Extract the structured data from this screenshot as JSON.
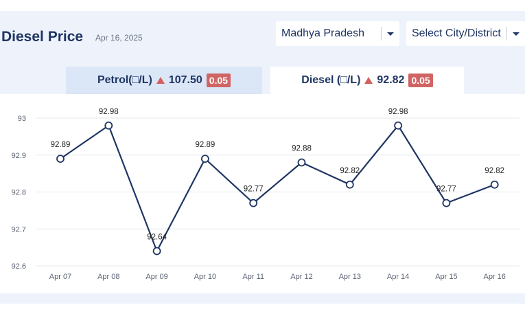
{
  "header": {
    "title": "Diesel Price",
    "date": "Apr 16, 2025"
  },
  "filters": {
    "state": "Madhya Pradesh",
    "city": "Select City/District",
    "caret_icon": "chevron-down-icon"
  },
  "tabs": {
    "petrol": {
      "label": "Petrol(□/L)",
      "price": "107.50",
      "change": "0.05",
      "direction": "up",
      "active": false
    },
    "diesel": {
      "label": "Diesel (□/L)",
      "price": "92.82",
      "change": "0.05",
      "direction": "up",
      "active": true
    }
  },
  "colors": {
    "line": "#1f3563",
    "up_arrow": "#d35f5f",
    "change_badge": "#d06464",
    "grid": "#e3e7ee"
  },
  "chart_data": {
    "type": "line",
    "title": "",
    "xlabel": "",
    "ylabel": "",
    "categories": [
      "Apr 07",
      "Apr 08",
      "Apr 09",
      "Apr 10",
      "Apr 11",
      "Apr 12",
      "Apr 13",
      "Apr 14",
      "Apr 15",
      "Apr 16"
    ],
    "values": [
      92.89,
      92.98,
      92.64,
      92.89,
      92.77,
      92.88,
      92.82,
      92.98,
      92.77,
      92.82
    ],
    "data_labels": [
      "92.89",
      "92.98",
      "92.64",
      "92.89",
      "92.77",
      "92.88",
      "92.82",
      "92.98",
      "92.77",
      "92.82"
    ],
    "yticks": [
      "92.6",
      "92.7",
      "92.8",
      "92.9",
      "93"
    ],
    "ylim": [
      92.6,
      93
    ],
    "grid": true,
    "legend": "none"
  }
}
